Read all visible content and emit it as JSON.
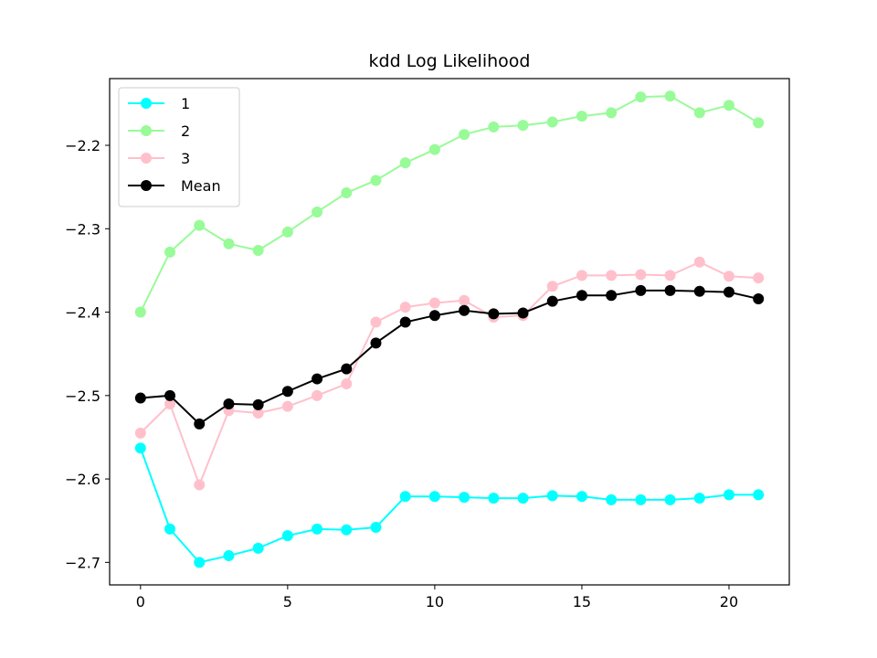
{
  "chart_data": {
    "type": "line",
    "title": "kdd Log Likelihood",
    "xlabel": "",
    "ylabel": "",
    "xlim": [
      -1.05,
      22.05
    ],
    "ylim": [
      -2.727,
      -2.12
    ],
    "xticks": [
      0,
      5,
      10,
      15,
      20
    ],
    "yticks": [
      -2.2,
      -2.3,
      -2.4,
      -2.5,
      -2.6,
      -2.7
    ],
    "ytick_labels": [
      "−2.2",
      "−2.3",
      "−2.4",
      "−2.5",
      "−2.6",
      "−2.7"
    ],
    "grid": false,
    "legend_position": "upper-left",
    "x": [
      0,
      1,
      2,
      3,
      4,
      5,
      6,
      7,
      8,
      9,
      10,
      11,
      12,
      13,
      14,
      15,
      16,
      17,
      18,
      19,
      20,
      21
    ],
    "series": [
      {
        "name": "1",
        "color": "#00ffff",
        "values": [
          -2.563,
          -2.66,
          -2.7,
          -2.692,
          -2.683,
          -2.668,
          -2.66,
          -2.661,
          -2.658,
          -2.621,
          -2.621,
          -2.622,
          -2.623,
          -2.623,
          -2.62,
          -2.621,
          -2.625,
          -2.625,
          -2.625,
          -2.623,
          -2.619,
          -2.619
        ]
      },
      {
        "name": "2",
        "color": "#98fb98",
        "values": [
          -2.4,
          -2.328,
          -2.296,
          -2.318,
          -2.326,
          -2.304,
          -2.28,
          -2.257,
          -2.242,
          -2.221,
          -2.205,
          -2.187,
          -2.178,
          -2.176,
          -2.172,
          -2.165,
          -2.161,
          -2.142,
          -2.141,
          -2.161,
          -2.152,
          -2.173
        ]
      },
      {
        "name": "3",
        "color": "#ffc0cb",
        "values": [
          -2.545,
          -2.51,
          -2.607,
          -2.518,
          -2.521,
          -2.513,
          -2.5,
          -2.486,
          -2.412,
          -2.394,
          -2.389,
          -2.386,
          -2.406,
          -2.404,
          -2.369,
          -2.356,
          -2.356,
          -2.355,
          -2.356,
          -2.34,
          -2.357,
          -2.359
        ]
      },
      {
        "name": "Mean",
        "color": "#000000",
        "values": [
          -2.503,
          -2.5,
          -2.534,
          -2.51,
          -2.511,
          -2.495,
          -2.48,
          -2.468,
          -2.437,
          -2.412,
          -2.404,
          -2.398,
          -2.402,
          -2.401,
          -2.387,
          -2.38,
          -2.38,
          -2.374,
          -2.374,
          -2.375,
          -2.376,
          -2.384
        ]
      }
    ]
  }
}
